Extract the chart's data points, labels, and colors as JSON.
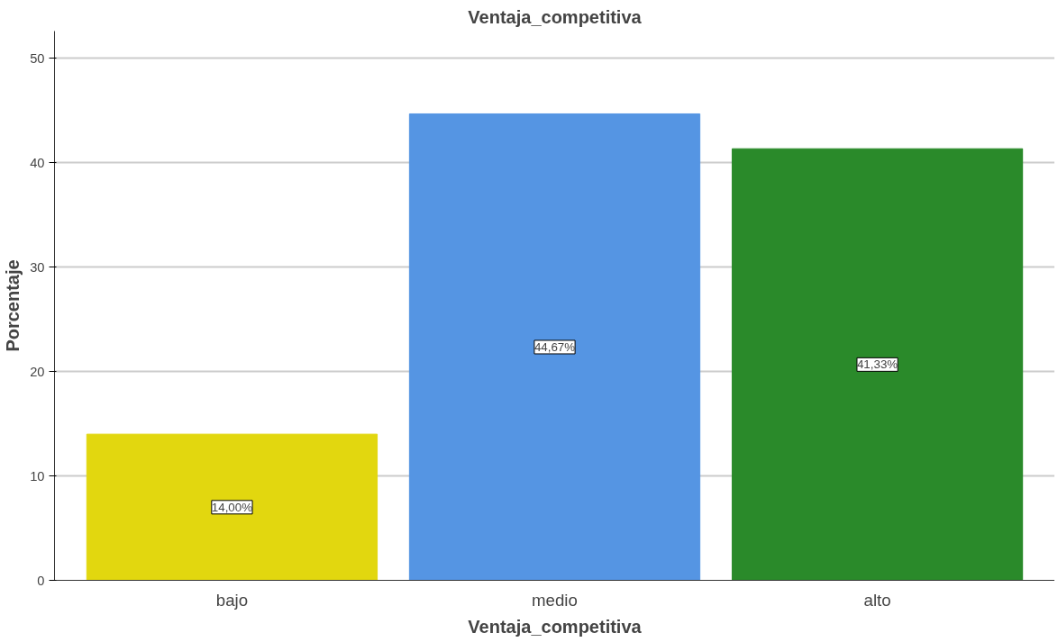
{
  "chart_data": {
    "type": "bar",
    "title": "Ventaja_competitiva",
    "xlabel": "Ventaja_competitiva",
    "ylabel": "Porcentaje",
    "categories": [
      "bajo",
      "medio",
      "alto"
    ],
    "values": [
      14.0,
      44.67,
      41.33
    ],
    "colors": [
      "#e2d70f",
      "#5595e3",
      "#2a8a2a"
    ],
    "value_labels": [
      "14,00%",
      "44,67%",
      "41,33%"
    ],
    "ylim": [
      0,
      52.6
    ],
    "yticks": [
      0,
      10,
      20,
      30,
      40,
      50
    ],
    "grid": "y"
  }
}
